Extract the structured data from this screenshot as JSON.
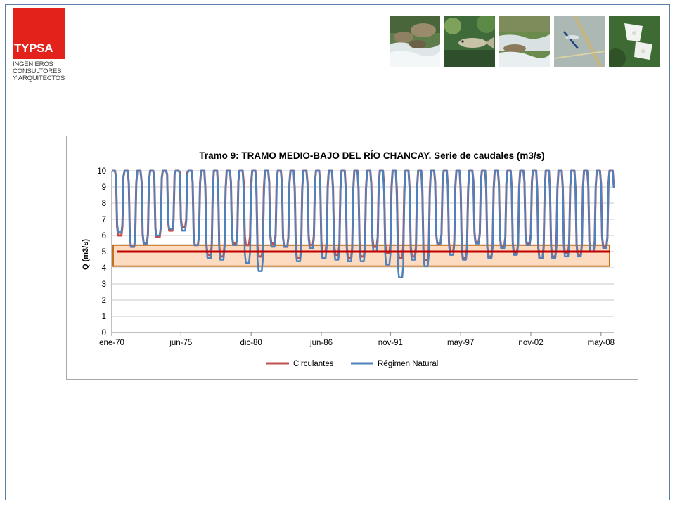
{
  "logo": {
    "brand": "TYPSA",
    "line1": "INGENIEROS",
    "line2": "CONSULTORES",
    "line3": "Y ARQUITECTOS"
  },
  "photos": [
    "river-rapids-photo",
    "fish-photo",
    "stream-photo",
    "damselfly-photo",
    "white-flower-photo"
  ],
  "chart_data": {
    "type": "line",
    "title": "Tramo 9: TRAMO MEDIO-BAJO DEL RÍO CHANCAY. Serie de caudales (m3/s)",
    "xlabel": "",
    "ylabel": "Q (m3/s)",
    "ylim": [
      0,
      10
    ],
    "yticks": [
      "0",
      "1",
      "2",
      "3",
      "4",
      "5",
      "6",
      "7",
      "8",
      "9",
      "10"
    ],
    "x_range": [
      "1970-01",
      "2009-05"
    ],
    "xtick_labels": [
      "ene-70",
      "jun-75",
      "dic-80",
      "jun-86",
      "nov-91",
      "may-97",
      "nov-02",
      "may-08"
    ],
    "x_tick_dates": [
      "1970-01",
      "1975-06",
      "1980-12",
      "1986-06",
      "1991-11",
      "1997-05",
      "2002-11",
      "2008-05"
    ],
    "series": [
      {
        "name": "Circulantes",
        "color": "#c0504d",
        "annual_dry_season_minimum_approx": [
          6.0,
          5.3,
          5.5,
          5.9,
          6.3,
          6.5,
          5.4,
          4.8,
          4.7,
          5.5,
          5.4,
          4.7,
          5.5,
          5.3,
          4.6,
          5.4,
          5.0,
          4.8,
          4.6,
          4.7,
          5.3,
          4.9,
          4.6,
          4.7,
          4.5,
          5.5,
          5.0,
          4.6,
          5.6,
          4.7,
          5.3,
          4.9,
          5.5,
          4.6,
          4.7,
          4.9,
          4.8,
          5.0,
          5.3,
          4.9
        ]
      },
      {
        "name": "Régimen Natural",
        "color": "#4f81bd",
        "annual_dry_season_minimum_approx": [
          6.2,
          5.3,
          5.5,
          6.0,
          6.4,
          6.3,
          5.4,
          4.6,
          4.5,
          5.4,
          4.3,
          3.8,
          5.3,
          5.3,
          4.4,
          5.2,
          4.6,
          4.5,
          4.4,
          4.4,
          5.0,
          4.2,
          3.4,
          4.5,
          4.1,
          5.5,
          4.8,
          4.5,
          5.5,
          4.6,
          5.2,
          4.8,
          5.4,
          4.6,
          4.6,
          4.7,
          4.7,
          5.0,
          5.2,
          4.8
        ]
      }
    ],
    "reference_line": {
      "value": 5.0,
      "color": "#c00000"
    },
    "highlight_band": {
      "from": 4.1,
      "to": 5.4,
      "fill": "#fbd5b5",
      "border": "#c0701e"
    },
    "legend": {
      "placement": "bottom",
      "items": [
        "Circulantes",
        "Régimen Natural"
      ]
    },
    "grid": true
  }
}
